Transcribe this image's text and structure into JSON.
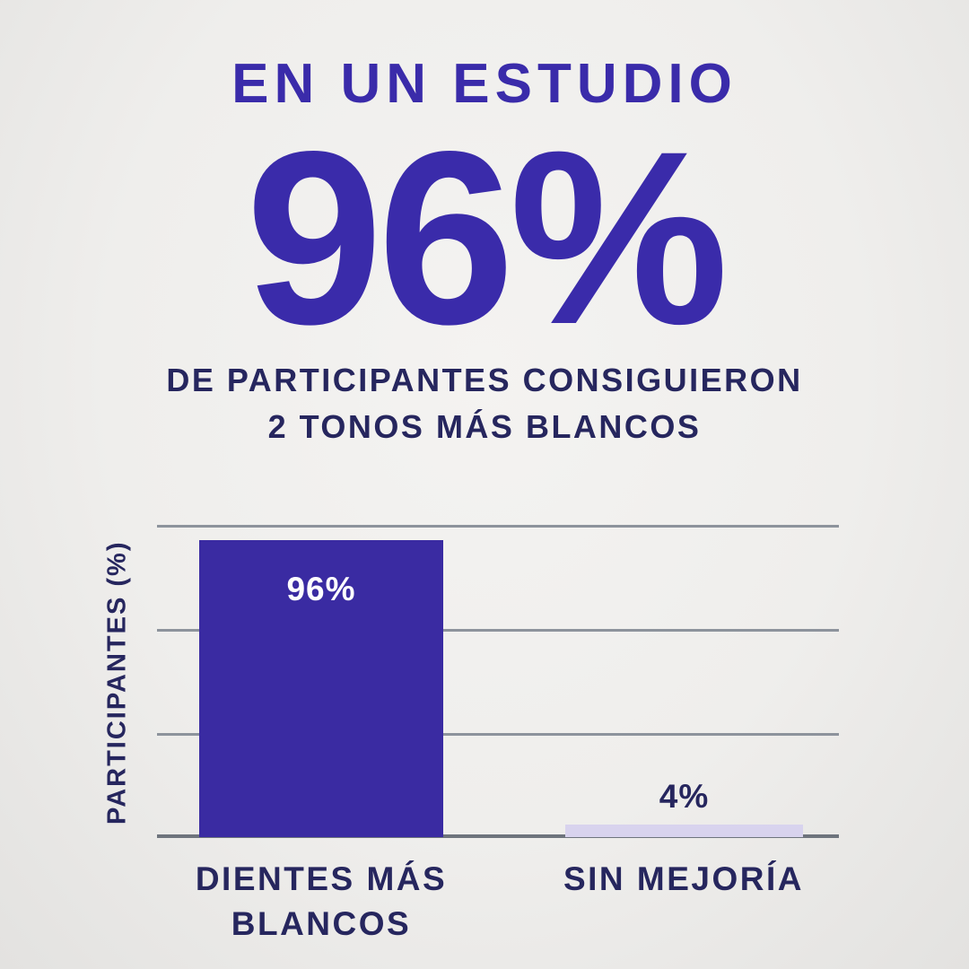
{
  "header": {
    "kicker": "EN UN ESTUDIO",
    "stat": "96%",
    "subtitle_line1": "DE PARTICIPANTES CONSIGUIERON",
    "subtitle_line2": "2 TONOS MÁS BLANCOS"
  },
  "colors": {
    "accent_purple": "#3a2baa",
    "dark_text": "#26265e",
    "lavender_bar": "#d8d3ee",
    "gridline": "#8d939c",
    "background": "#efeeec"
  },
  "chart_data": {
    "type": "bar",
    "categories": [
      "DIENTES MÁS BLANCOS",
      "SIN MEJORÍA"
    ],
    "values": [
      96,
      4
    ],
    "value_labels": [
      "96%",
      "4%"
    ],
    "title": "",
    "xlabel": "",
    "ylabel": "PARTICIPANTES (%)",
    "ylim": [
      0,
      100
    ],
    "grid": true,
    "legend": "none",
    "bar_colors": [
      "#3a2ba2",
      "#d8d3ee"
    ]
  }
}
